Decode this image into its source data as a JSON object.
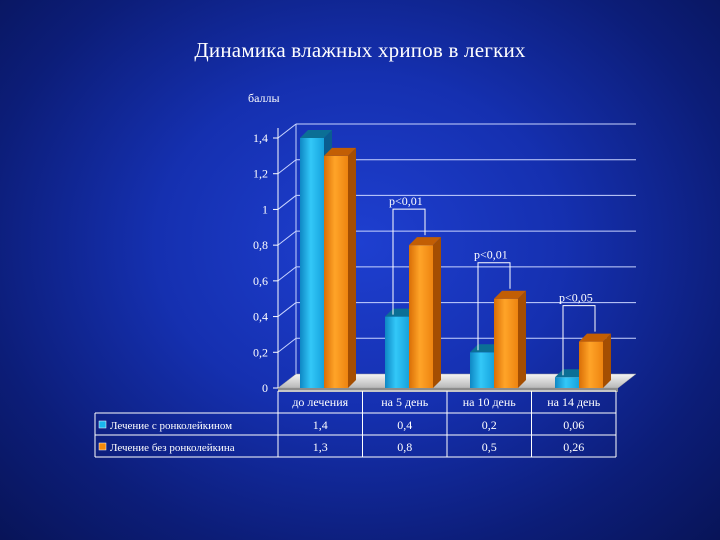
{
  "title": "Динамика влажных хрипов в легких",
  "chart_data": {
    "type": "bar",
    "title": "Динамика влажных хрипов в легких",
    "ylabel": "баллы",
    "xlabel": "",
    "ylim": [
      0,
      1.4
    ],
    "yticks": [
      "0",
      "0,2",
      "0,4",
      "0,6",
      "0,8",
      "1",
      "1,2",
      "1,4"
    ],
    "grid": true,
    "legend": "bottom-table",
    "categories": [
      "до лечения",
      "на 5 день",
      "на 10 день",
      "на 14 день"
    ],
    "series": [
      {
        "name": "Лечение с ронколейкином",
        "values": [
          1.4,
          0.4,
          0.2,
          0.06
        ],
        "labels": [
          "1,4",
          "0,4",
          "0,2",
          "0,06"
        ],
        "color": "#19b6ee"
      },
      {
        "name": "Лечение без ронколейкина",
        "values": [
          1.3,
          0.8,
          0.5,
          0.26
        ],
        "labels": [
          "1,3",
          "0,8",
          "0,5",
          "0,26"
        ],
        "color": "#f58a0a"
      }
    ],
    "annotations": [
      {
        "text": "p<0,01",
        "category": 1
      },
      {
        "text": "p<0,01",
        "category": 2
      },
      {
        "text": "p<0,05",
        "category": 3
      }
    ]
  }
}
